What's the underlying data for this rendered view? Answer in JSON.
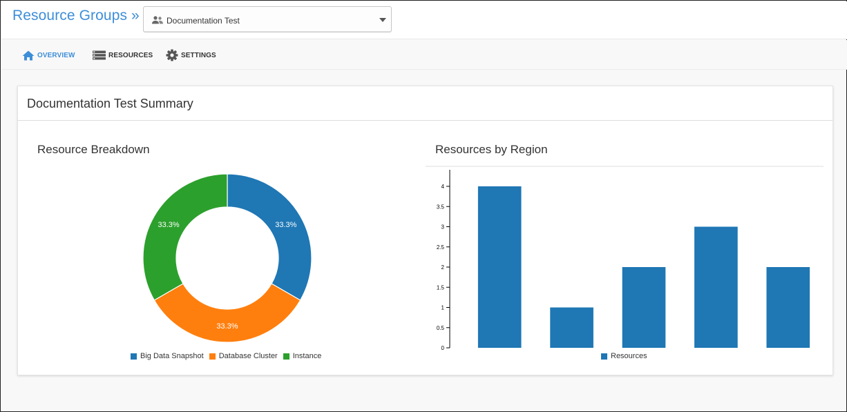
{
  "header": {
    "brand": "Resource Groups »",
    "group_select": {
      "value": "Documentation Test",
      "icon": "people-icon"
    }
  },
  "nav": {
    "items": [
      {
        "label": "OVERVIEW",
        "icon": "home-icon",
        "active": true
      },
      {
        "label": "RESOURCES",
        "icon": "list-icon",
        "active": false
      },
      {
        "label": "SETTINGS",
        "icon": "gear-icon",
        "active": false
      }
    ]
  },
  "summary": {
    "title": "Documentation Test Summary",
    "breakdown_title": "Resource Breakdown",
    "region_title": "Resources by Region"
  },
  "colors": {
    "accent": "#3d8ed8",
    "blue": "#1f77b4",
    "orange": "#ff7f0e",
    "green": "#2ca02c"
  },
  "chart_data": [
    {
      "type": "pie",
      "title": "Resource Breakdown",
      "donut": true,
      "categories": [
        "Big Data Snapshot",
        "Database Cluster",
        "Instance"
      ],
      "values": [
        1,
        1,
        1
      ],
      "labels": [
        "33.3%",
        "33.3%",
        "33.3%"
      ],
      "colors": [
        "#1f77b4",
        "#ff7f0e",
        "#2ca02c"
      ],
      "legend": "bottom"
    },
    {
      "type": "bar",
      "title": "Resources by Region",
      "series": [
        {
          "name": "Resources",
          "values": [
            4,
            1,
            2,
            3,
            2
          ]
        }
      ],
      "ylim": [
        0,
        4
      ],
      "yticks": [
        "0",
        "0.5",
        "1",
        "1.5",
        "2",
        "2.5",
        "3",
        "3.5",
        "4"
      ],
      "color": "#1f77b4",
      "legend": "bottom"
    }
  ]
}
